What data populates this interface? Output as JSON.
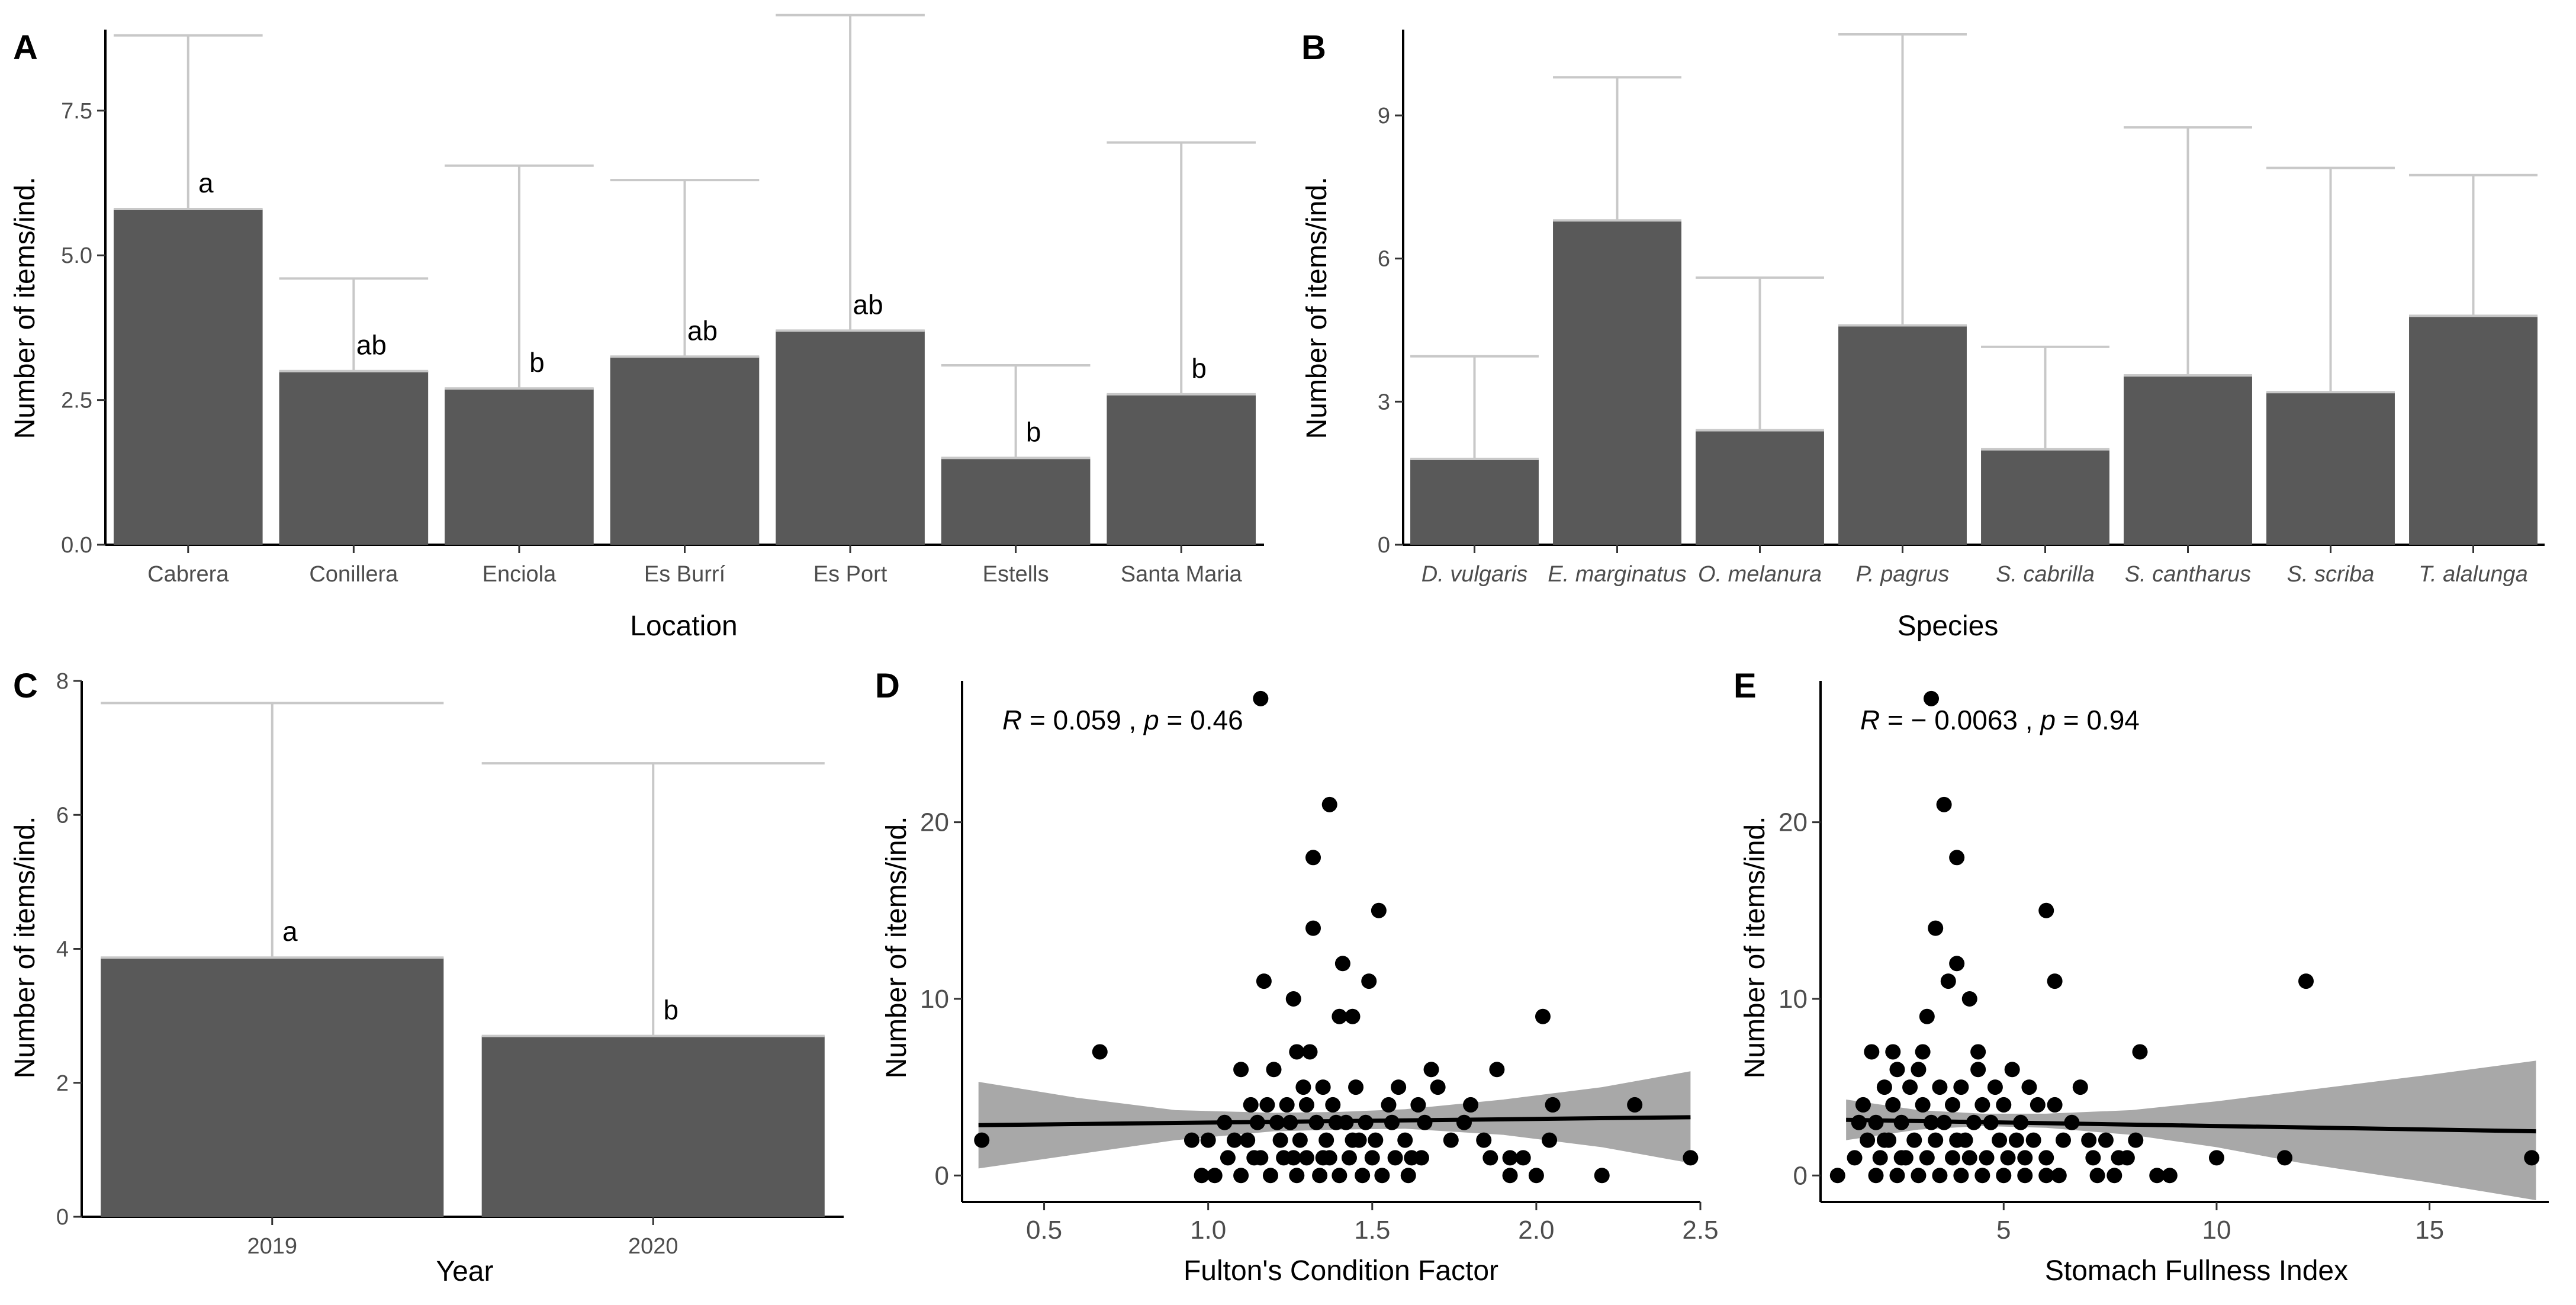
{
  "figure": {
    "charts": [
      {
        "id": "A",
        "panel_label": "A",
        "type": "bar",
        "xlabel": "Location",
        "ylabel": "Number of items/ind.",
        "ylim": [
          0,
          8.9
        ],
        "yticks": [
          0.0,
          2.5,
          5.0,
          7.5
        ],
        "ytick_labels": [
          "0.0",
          "2.5",
          "5.0",
          "7.5"
        ],
        "categories": [
          "Cabrera",
          "Conillera",
          "Enciola",
          "Es Burrí",
          "Es Port",
          "Estells",
          "Santa Maria"
        ],
        "values": [
          5.8,
          3.0,
          2.7,
          3.25,
          3.7,
          1.5,
          2.6
        ],
        "error_upper": [
          8.8,
          4.6,
          6.55,
          6.3,
          9.15,
          3.1,
          6.95
        ],
        "significance": [
          "a",
          "ab",
          "b",
          "ab",
          "ab",
          "b",
          "b"
        ],
        "grid": false,
        "colors": {
          "bar": "#595959",
          "error": "#c8c8c8"
        }
      },
      {
        "id": "B",
        "panel_label": "B",
        "type": "bar",
        "xlabel": "Species",
        "ylabel": "Number of items/ind.",
        "ylim": [
          0,
          10.8
        ],
        "yticks": [
          0,
          3,
          6,
          9
        ],
        "ytick_labels": [
          "0",
          "3",
          "6",
          "9"
        ],
        "categories": [
          "D. vulgaris",
          "E. marginatus",
          "O. melanura",
          "P. pagrus",
          "S. cabrilla",
          "S. cantharus",
          "S. scriba",
          "T. alalunga"
        ],
        "values": [
          1.8,
          6.8,
          2.4,
          4.6,
          2.0,
          3.55,
          3.2,
          4.8
        ],
        "error_upper": [
          3.95,
          9.8,
          5.6,
          10.7,
          4.15,
          8.75,
          7.9,
          7.75
        ],
        "grid": false,
        "colors": {
          "bar": "#595959",
          "error": "#c8c8c8"
        }
      },
      {
        "id": "C",
        "panel_label": "C",
        "type": "bar",
        "xlabel": "Year",
        "ylabel": "Number of items/ind.",
        "ylim": [
          0,
          8
        ],
        "yticks": [
          0,
          2,
          4,
          6,
          8
        ],
        "ytick_labels": [
          "0",
          "2",
          "4",
          "6",
          "8"
        ],
        "categories": [
          "2019",
          "2020"
        ],
        "values": [
          3.87,
          2.7
        ],
        "error_upper": [
          7.67,
          6.77
        ],
        "significance": [
          "a",
          "b"
        ],
        "grid": false,
        "colors": {
          "bar": "#595959",
          "error": "#c8c8c8"
        }
      },
      {
        "id": "D",
        "panel_label": "D",
        "type": "scatter",
        "xlabel": "Fulton's Condition Factor",
        "ylabel": "Number of items/ind.",
        "xlim": [
          0.25,
          2.5
        ],
        "ylim": [
          -1.5,
          28
        ],
        "xticks": [
          0.5,
          1.0,
          1.5,
          2.0,
          2.5
        ],
        "xtick_labels": [
          "0.5",
          "1.0",
          "1.5",
          "2.0",
          "2.5"
        ],
        "yticks": [
          0,
          10,
          20
        ],
        "ytick_labels": [
          "0",
          "10",
          "20"
        ],
        "annotation": {
          "r_symbol": "R",
          "r_value": " = 0.059 , ",
          "p_symbol": "p",
          "p_value": " = 0.46"
        },
        "regression": {
          "x": [
            0.3,
            2.47
          ],
          "y": [
            2.85,
            3.3
          ]
        },
        "confidence_band": {
          "x": [
            0.3,
            0.6,
            0.9,
            1.2,
            1.4,
            1.6,
            1.9,
            2.2,
            2.47
          ],
          "upper": [
            5.3,
            4.4,
            3.7,
            3.55,
            3.6,
            3.75,
            4.3,
            5.0,
            5.9
          ],
          "lower": [
            0.4,
            1.2,
            2.0,
            2.5,
            2.6,
            2.65,
            2.3,
            1.6,
            0.7
          ]
        },
        "points": [
          [
            0.31,
            2
          ],
          [
            0.67,
            7
          ],
          [
            1.16,
            27
          ],
          [
            1.37,
            21
          ],
          [
            1.32,
            18
          ],
          [
            1.52,
            15
          ],
          [
            1.32,
            14
          ],
          [
            1.41,
            12
          ],
          [
            1.17,
            11
          ],
          [
            1.49,
            11
          ],
          [
            1.26,
            10
          ],
          [
            1.4,
            9
          ],
          [
            1.44,
            9
          ],
          [
            2.02,
            9
          ],
          [
            1.27,
            7
          ],
          [
            1.31,
            7
          ],
          [
            1.68,
            6
          ],
          [
            1.88,
            6
          ],
          [
            1.58,
            5
          ],
          [
            1.7,
            5
          ],
          [
            1.1,
            6
          ],
          [
            1.2,
            6
          ],
          [
            1.35,
            5
          ],
          [
            1.45,
            5
          ],
          [
            1.3,
            4
          ],
          [
            1.55,
            4
          ],
          [
            1.64,
            4
          ],
          [
            1.8,
            4
          ],
          [
            2.05,
            4
          ],
          [
            2.3,
            4
          ],
          [
            0.95,
            2
          ],
          [
            1.0,
            2
          ],
          [
            1.05,
            3
          ],
          [
            1.12,
            2
          ],
          [
            1.15,
            3
          ],
          [
            1.18,
            4
          ],
          [
            1.22,
            2
          ],
          [
            1.25,
            3
          ],
          [
            1.28,
            2
          ],
          [
            1.33,
            3
          ],
          [
            1.36,
            2
          ],
          [
            1.38,
            4
          ],
          [
            1.42,
            3
          ],
          [
            1.46,
            2
          ],
          [
            1.48,
            3
          ],
          [
            1.51,
            2
          ],
          [
            1.56,
            3
          ],
          [
            1.6,
            2
          ],
          [
            1.62,
            1
          ],
          [
            1.66,
            3
          ],
          [
            1.74,
            2
          ],
          [
            1.78,
            3
          ],
          [
            1.84,
            2
          ],
          [
            1.86,
            1
          ],
          [
            1.92,
            1
          ],
          [
            1.96,
            1
          ],
          [
            2.0,
            0
          ],
          [
            2.04,
            2
          ],
          [
            2.2,
            0
          ],
          [
            2.47,
            1
          ],
          [
            0.98,
            0
          ],
          [
            1.02,
            0
          ],
          [
            1.06,
            1
          ],
          [
            1.1,
            0
          ],
          [
            1.14,
            1
          ],
          [
            1.19,
            0
          ],
          [
            1.23,
            1
          ],
          [
            1.27,
            0
          ],
          [
            1.3,
            1
          ],
          [
            1.34,
            0
          ],
          [
            1.37,
            1
          ],
          [
            1.4,
            0
          ],
          [
            1.43,
            1
          ],
          [
            1.47,
            0
          ],
          [
            1.5,
            1
          ],
          [
            1.53,
            0
          ],
          [
            1.57,
            1
          ],
          [
            1.61,
            0
          ],
          [
            1.65,
            1
          ],
          [
            1.92,
            0
          ],
          [
            1.08,
            2
          ],
          [
            1.16,
            1
          ],
          [
            1.24,
            4
          ],
          [
            1.29,
            5
          ],
          [
            1.39,
            3
          ],
          [
            1.44,
            2
          ],
          [
            1.35,
            1
          ],
          [
            1.26,
            1
          ],
          [
            1.21,
            3
          ],
          [
            1.13,
            4
          ]
        ],
        "grid": false,
        "colors": {
          "points": "#000000",
          "line": "#000000",
          "band": "#999999"
        }
      },
      {
        "id": "E",
        "panel_label": "E",
        "type": "scatter",
        "xlabel": "Stomach Fullness Index",
        "ylabel": "Number of items/ind.",
        "xlim": [
          0.7,
          17.8
        ],
        "ylim": [
          -1.5,
          28
        ],
        "xticks": [
          5,
          10,
          15
        ],
        "xtick_labels": [
          "5",
          "10",
          "15"
        ],
        "yticks": [
          0,
          10,
          20
        ],
        "ytick_labels": [
          "0",
          "10",
          "20"
        ],
        "annotation": {
          "r_symbol": "R",
          "r_value": " = − 0.0063 , ",
          "p_symbol": "p",
          "p_value": " = 0.94"
        },
        "regression": {
          "x": [
            1.3,
            17.5
          ],
          "y": [
            3.15,
            2.5
          ]
        },
        "confidence_band": {
          "x": [
            1.3,
            3.0,
            4.5,
            6.0,
            8.0,
            10.0,
            12.0,
            15.0,
            17.5
          ],
          "upper": [
            4.3,
            3.7,
            3.5,
            3.5,
            3.7,
            4.2,
            4.8,
            5.7,
            6.5
          ],
          "lower": [
            2.0,
            2.6,
            2.8,
            2.7,
            2.3,
            1.6,
            0.7,
            -0.4,
            -1.4
          ]
        },
        "points": [
          [
            3.3,
            27
          ],
          [
            3.6,
            21
          ],
          [
            3.9,
            18
          ],
          [
            3.4,
            14
          ],
          [
            6.0,
            15
          ],
          [
            3.9,
            12
          ],
          [
            3.7,
            11
          ],
          [
            6.2,
            11
          ],
          [
            12.1,
            11
          ],
          [
            4.2,
            10
          ],
          [
            3.2,
            9
          ],
          [
            1.9,
            7
          ],
          [
            8.2,
            7
          ],
          [
            2.5,
            6
          ],
          [
            3.0,
            6
          ],
          [
            4.4,
            6
          ],
          [
            5.2,
            6
          ],
          [
            5.6,
            5
          ],
          [
            2.2,
            5
          ],
          [
            2.8,
            5
          ],
          [
            3.5,
            5
          ],
          [
            4.0,
            5
          ],
          [
            4.8,
            5
          ],
          [
            1.7,
            4
          ],
          [
            2.0,
            3
          ],
          [
            2.4,
            4
          ],
          [
            2.6,
            3
          ],
          [
            3.1,
            4
          ],
          [
            3.8,
            4
          ],
          [
            4.5,
            4
          ],
          [
            5.0,
            4
          ],
          [
            5.8,
            4
          ],
          [
            6.2,
            4
          ],
          [
            7.0,
            2
          ],
          [
            7.4,
            2
          ],
          [
            7.9,
            1
          ],
          [
            8.1,
            2
          ],
          [
            8.6,
            0
          ],
          [
            8.9,
            0
          ],
          [
            10.0,
            1
          ],
          [
            11.6,
            1
          ],
          [
            17.4,
            1
          ],
          [
            1.1,
            0
          ],
          [
            1.5,
            1
          ],
          [
            1.8,
            2
          ],
          [
            2.1,
            1
          ],
          [
            2.3,
            2
          ],
          [
            2.7,
            1
          ],
          [
            2.9,
            2
          ],
          [
            3.2,
            1
          ],
          [
            3.4,
            2
          ],
          [
            3.6,
            3
          ],
          [
            3.8,
            1
          ],
          [
            4.1,
            2
          ],
          [
            4.3,
            3
          ],
          [
            4.6,
            1
          ],
          [
            4.9,
            2
          ],
          [
            5.1,
            1
          ],
          [
            5.3,
            2
          ],
          [
            5.5,
            1
          ],
          [
            5.7,
            2
          ],
          [
            6.0,
            1
          ],
          [
            6.4,
            2
          ],
          [
            6.6,
            3
          ],
          [
            2.0,
            0
          ],
          [
            2.5,
            0
          ],
          [
            3.0,
            0
          ],
          [
            3.5,
            0
          ],
          [
            4.0,
            0
          ],
          [
            4.5,
            0
          ],
          [
            5.0,
            0
          ],
          [
            5.5,
            0
          ],
          [
            6.0,
            0
          ],
          [
            6.3,
            0
          ],
          [
            7.2,
            0
          ],
          [
            7.6,
            0
          ],
          [
            1.6,
            3
          ],
          [
            2.2,
            2
          ],
          [
            2.6,
            1
          ],
          [
            3.3,
            3
          ],
          [
            3.9,
            2
          ],
          [
            4.2,
            1
          ],
          [
            4.7,
            3
          ],
          [
            5.4,
            3
          ],
          [
            6.8,
            5
          ],
          [
            7.1,
            1
          ],
          [
            7.7,
            1
          ],
          [
            2.4,
            7
          ],
          [
            3.1,
            7
          ],
          [
            4.4,
            7
          ]
        ],
        "grid": false,
        "colors": {
          "points": "#000000",
          "line": "#000000",
          "band": "#999999"
        }
      }
    ]
  }
}
